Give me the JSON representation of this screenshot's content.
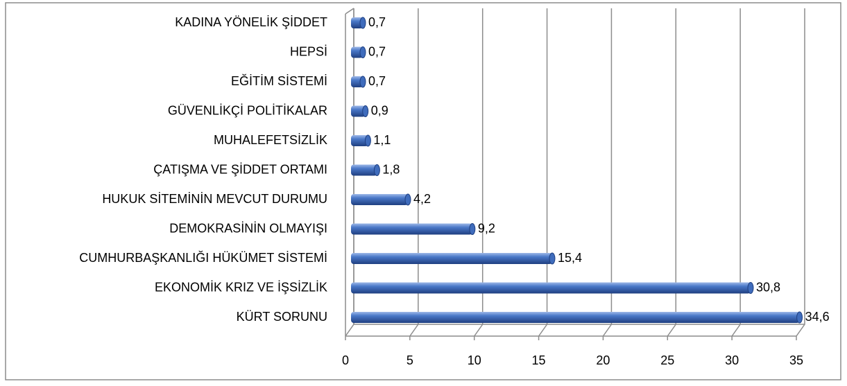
{
  "chart_data": {
    "type": "bar",
    "orientation": "horizontal",
    "categories": [
      "KADINA YÖNELİK ŞİDDET",
      "HEPSİ",
      "EĞİTİM SİSTEMİ",
      "GÜVENLİKÇİ POLİTİKALAR",
      "MUHALEFETSİZLİK",
      "ÇATIŞMA VE ŞİDDET ORTAMI",
      "HUKUK SİTEMİNİN MEVCUT DURUMU",
      "DEMOKRASİNİN OLMAYIŞI",
      "CUMHURBAŞKANLIĞI HÜKÜMET SİSTEMİ",
      "EKONOMİK KRIZ VE İŞSİZLİK",
      "KÜRT SORUNU"
    ],
    "values": [
      0.7,
      0.7,
      0.7,
      0.9,
      1.1,
      1.8,
      4.2,
      9.2,
      15.4,
      30.8,
      34.6
    ],
    "value_labels": [
      "0,7",
      "0,7",
      "0,7",
      "0,9",
      "1,1",
      "1,8",
      "4,2",
      "9,2",
      "15,4",
      "30,8",
      "34,6"
    ],
    "color": "#4472c4",
    "xlim": [
      0,
      35
    ],
    "xticks": [
      0,
      5,
      10,
      15,
      20,
      25,
      30,
      35
    ],
    "grid": true
  }
}
